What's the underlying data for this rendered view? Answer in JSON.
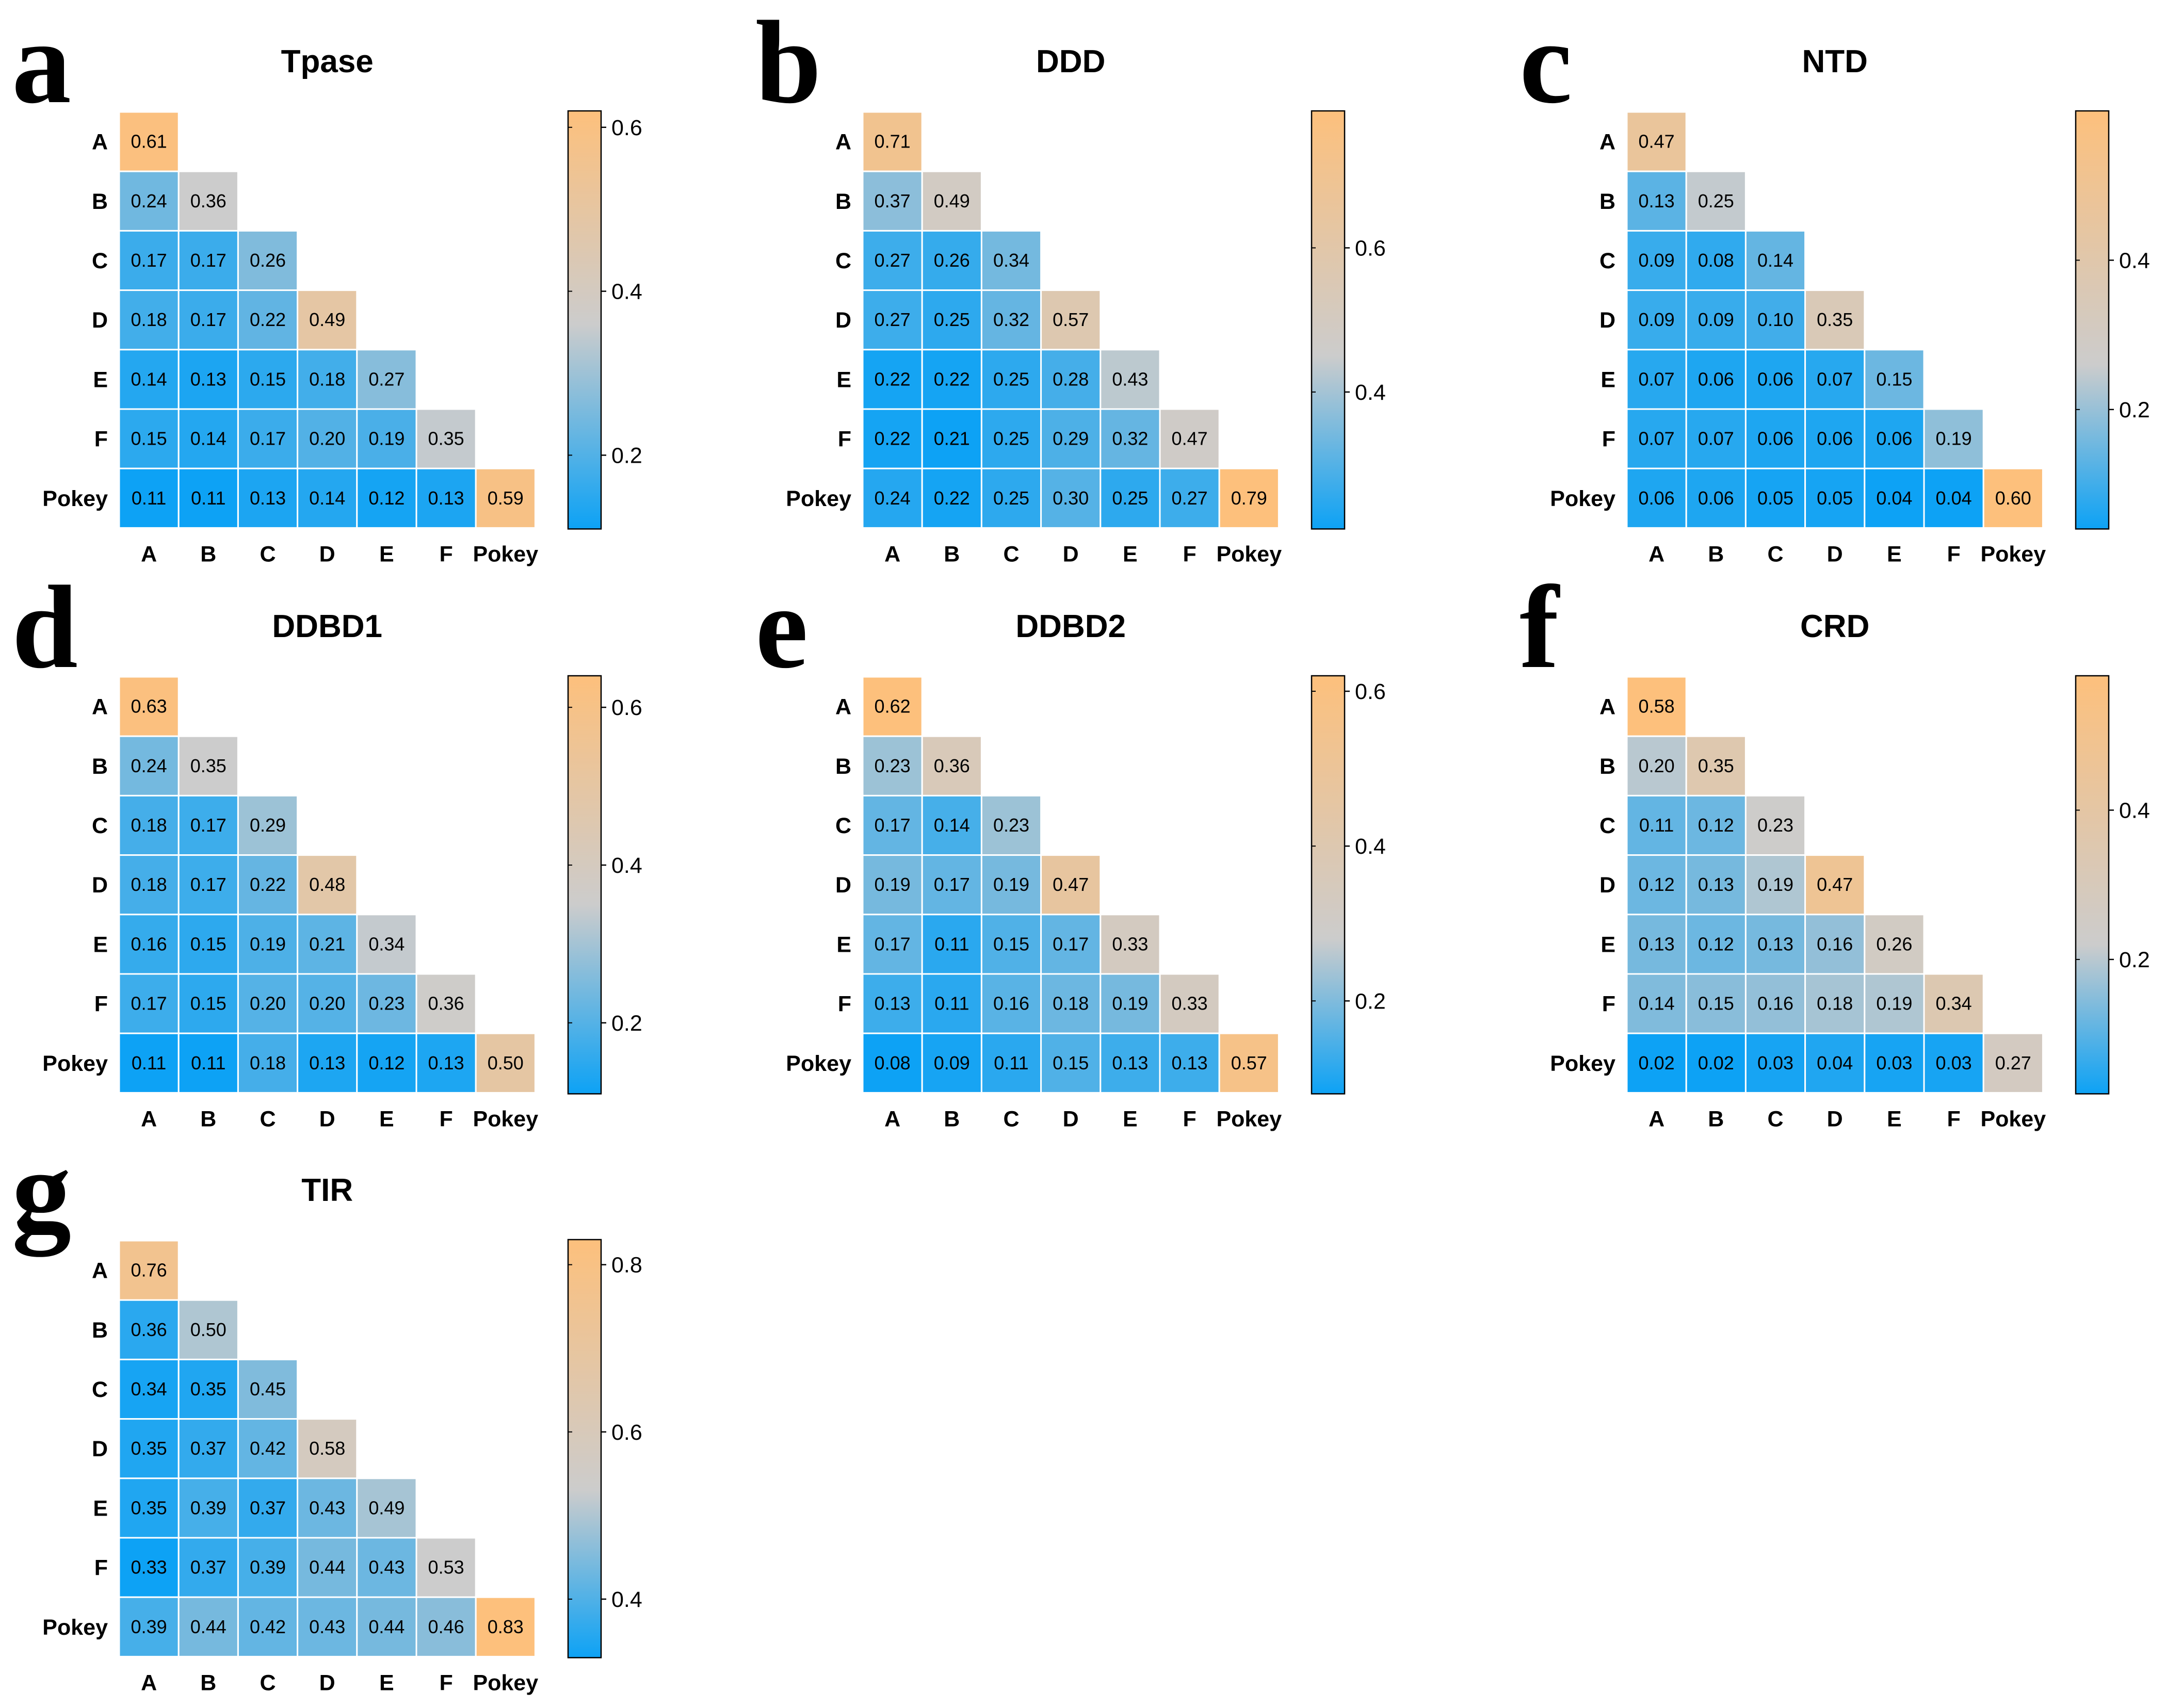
{
  "colors": {
    "low": "#0da2f5",
    "mid": "#cccccc",
    "high": "#fdc07c",
    "grid": "#ffffff",
    "frame": "#000000"
  },
  "chart_data": [
    {
      "type": "heatmap",
      "letter": "a",
      "title": "Tpase",
      "labels": [
        "A",
        "B",
        "C",
        "D",
        "E",
        "F",
        "Pokey"
      ],
      "values": [
        [
          0.61
        ],
        [
          0.24,
          0.36
        ],
        [
          0.17,
          0.17,
          0.26
        ],
        [
          0.18,
          0.17,
          0.22,
          0.49
        ],
        [
          0.14,
          0.13,
          0.15,
          0.18,
          0.27
        ],
        [
          0.15,
          0.14,
          0.17,
          0.2,
          0.19,
          0.35
        ],
        [
          0.11,
          0.11,
          0.13,
          0.14,
          0.12,
          0.13,
          0.59
        ]
      ],
      "display": [
        [
          "0.61"
        ],
        [
          "0.24",
          "0.36"
        ],
        [
          "0.17",
          "0.17",
          "0.26"
        ],
        [
          "0.18",
          "0.17",
          "0.22",
          "0.49"
        ],
        [
          "0.14",
          "0.13",
          "0.15",
          "0.18",
          "0.27"
        ],
        [
          "0.15",
          "0.14",
          "0.17",
          "0.20",
          "0.19",
          "0.35"
        ],
        [
          "0.11",
          "0.11",
          "0.13",
          "0.14",
          "0.12",
          "0.13",
          "0.59"
        ]
      ],
      "colorbar": {
        "range": [
          0.11,
          0.62
        ],
        "mid": 0.36,
        "ticks": [
          0.2,
          0.4,
          0.6
        ],
        "tick_labels": [
          "0.2",
          "0.4",
          "0.6"
        ]
      }
    },
    {
      "type": "heatmap",
      "letter": "b",
      "title": "DDD",
      "labels": [
        "A",
        "B",
        "C",
        "D",
        "E",
        "F",
        "Pokey"
      ],
      "values": [
        [
          0.71
        ],
        [
          0.37,
          0.49
        ],
        [
          0.27,
          0.26,
          0.34
        ],
        [
          0.27,
          0.25,
          0.32,
          0.57
        ],
        [
          0.22,
          0.22,
          0.25,
          0.28,
          0.43
        ],
        [
          0.22,
          0.21,
          0.25,
          0.29,
          0.32,
          0.47
        ],
        [
          0.24,
          0.22,
          0.25,
          0.3,
          0.25,
          0.27,
          0.79
        ]
      ],
      "display": [
        [
          "0.71"
        ],
        [
          "0.37",
          "0.49"
        ],
        [
          "0.27",
          "0.26",
          "0.34"
        ],
        [
          "0.27",
          "0.25",
          "0.32",
          "0.57"
        ],
        [
          "0.22",
          "0.22",
          "0.25",
          "0.28",
          "0.43"
        ],
        [
          "0.22",
          "0.21",
          "0.25",
          "0.29",
          "0.32",
          "0.47"
        ],
        [
          "0.24",
          "0.22",
          "0.25",
          "0.30",
          "0.25",
          "0.27",
          "0.79"
        ]
      ],
      "colorbar": {
        "range": [
          0.21,
          0.79
        ],
        "mid": 0.45,
        "ticks": [
          0.4,
          0.6
        ],
        "tick_labels": [
          "0.4",
          "0.6"
        ]
      }
    },
    {
      "type": "heatmap",
      "letter": "c",
      "title": "NTD",
      "labels": [
        "A",
        "B",
        "C",
        "D",
        "E",
        "F",
        "Pokey"
      ],
      "values": [
        [
          0.47
        ],
        [
          0.13,
          0.25
        ],
        [
          0.09,
          0.08,
          0.14
        ],
        [
          0.09,
          0.09,
          0.1,
          0.35
        ],
        [
          0.07,
          0.06,
          0.06,
          0.07,
          0.15
        ],
        [
          0.07,
          0.07,
          0.06,
          0.06,
          0.06,
          0.19
        ],
        [
          0.06,
          0.06,
          0.05,
          0.05,
          0.04,
          0.04,
          0.6
        ]
      ],
      "display": [
        [
          "0.47"
        ],
        [
          "0.13",
          "0.25"
        ],
        [
          "0.09",
          "0.08",
          "0.14"
        ],
        [
          "0.09",
          "0.09",
          "0.10",
          "0.35"
        ],
        [
          "0.07",
          "0.06",
          "0.06",
          "0.07",
          "0.15"
        ],
        [
          "0.07",
          "0.07",
          "0.06",
          "0.06",
          "0.06",
          "0.19"
        ],
        [
          "0.06",
          "0.06",
          "0.05",
          "0.05",
          "0.04",
          "0.04",
          "0.60"
        ]
      ],
      "colorbar": {
        "range": [
          0.04,
          0.6
        ],
        "mid": 0.26,
        "ticks": [
          0.2,
          0.4
        ],
        "tick_labels": [
          "0.2",
          "0.4"
        ]
      }
    },
    {
      "type": "heatmap",
      "letter": "d",
      "title": "DDBD1",
      "labels": [
        "A",
        "B",
        "C",
        "D",
        "E",
        "F",
        "Pokey"
      ],
      "values": [
        [
          0.63
        ],
        [
          0.24,
          0.35
        ],
        [
          0.18,
          0.17,
          0.29
        ],
        [
          0.18,
          0.17,
          0.22,
          0.48
        ],
        [
          0.16,
          0.15,
          0.19,
          0.21,
          0.34
        ],
        [
          0.17,
          0.15,
          0.2,
          0.2,
          0.23,
          0.36
        ],
        [
          0.11,
          0.11,
          0.18,
          0.13,
          0.12,
          0.13,
          0.5
        ]
      ],
      "display": [
        [
          "0.63"
        ],
        [
          "0.24",
          "0.35"
        ],
        [
          "0.18",
          "0.17",
          "0.29"
        ],
        [
          "0.18",
          "0.17",
          "0.22",
          "0.48"
        ],
        [
          "0.16",
          "0.15",
          "0.19",
          "0.21",
          "0.34"
        ],
        [
          "0.17",
          "0.15",
          "0.20",
          "0.20",
          "0.23",
          "0.36"
        ],
        [
          "0.11",
          "0.11",
          "0.18",
          "0.13",
          "0.12",
          "0.13",
          "0.50"
        ]
      ],
      "colorbar": {
        "range": [
          0.11,
          0.64
        ],
        "mid": 0.35,
        "ticks": [
          0.2,
          0.4,
          0.6
        ],
        "tick_labels": [
          "0.2",
          "0.4",
          "0.6"
        ]
      }
    },
    {
      "type": "heatmap",
      "letter": "e",
      "title": "DDBD2",
      "labels": [
        "A",
        "B",
        "C",
        "D",
        "E",
        "F",
        "Pokey"
      ],
      "values": [
        [
          0.62
        ],
        [
          0.23,
          0.36
        ],
        [
          0.17,
          0.14,
          0.23
        ],
        [
          0.19,
          0.17,
          0.19,
          0.47
        ],
        [
          0.17,
          0.11,
          0.15,
          0.17,
          0.33
        ],
        [
          0.13,
          0.11,
          0.16,
          0.18,
          0.19,
          0.33
        ],
        [
          0.08,
          0.09,
          0.11,
          0.15,
          0.13,
          0.13,
          0.57
        ]
      ],
      "display": [
        [
          "0.62"
        ],
        [
          "0.23",
          "0.36"
        ],
        [
          "0.17",
          "0.14",
          "0.23"
        ],
        [
          "0.19",
          "0.17",
          "0.19",
          "0.47"
        ],
        [
          "0.17",
          "0.11",
          "0.15",
          "0.17",
          "0.33"
        ],
        [
          "0.13",
          "0.11",
          "0.16",
          "0.18",
          "0.19",
          "0.33"
        ],
        [
          "0.08",
          "0.09",
          "0.11",
          "0.15",
          "0.13",
          "0.13",
          "0.57"
        ]
      ],
      "colorbar": {
        "range": [
          0.08,
          0.62
        ],
        "mid": 0.28,
        "ticks": [
          0.2,
          0.4,
          0.6
        ],
        "tick_labels": [
          "0.2",
          "0.4",
          "0.6"
        ]
      }
    },
    {
      "type": "heatmap",
      "letter": "f",
      "title": "CRD",
      "labels": [
        "A",
        "B",
        "C",
        "D",
        "E",
        "F",
        "Pokey"
      ],
      "values": [
        [
          0.58
        ],
        [
          0.2,
          0.35
        ],
        [
          0.11,
          0.12,
          0.23
        ],
        [
          0.12,
          0.13,
          0.19,
          0.47
        ],
        [
          0.13,
          0.12,
          0.13,
          0.16,
          0.26
        ],
        [
          0.14,
          0.15,
          0.16,
          0.18,
          0.19,
          0.34
        ],
        [
          0.02,
          0.02,
          0.03,
          0.04,
          0.03,
          0.03,
          0.27
        ]
      ],
      "display": [
        [
          "0.58"
        ],
        [
          "0.20",
          "0.35"
        ],
        [
          "0.11",
          "0.12",
          "0.23"
        ],
        [
          "0.12",
          "0.13",
          "0.19",
          "0.47"
        ],
        [
          "0.13",
          "0.12",
          "0.13",
          "0.16",
          "0.26"
        ],
        [
          "0.14",
          "0.15",
          "0.16",
          "0.18",
          "0.19",
          "0.34"
        ],
        [
          "0.02",
          "0.02",
          "0.03",
          "0.04",
          "0.03",
          "0.03",
          "0.27"
        ]
      ],
      "colorbar": {
        "range": [
          0.02,
          0.58
        ],
        "mid": 0.22,
        "ticks": [
          0.2,
          0.4
        ],
        "tick_labels": [
          "0.2",
          "0.4"
        ]
      }
    },
    {
      "type": "heatmap",
      "letter": "g",
      "title": "TIR",
      "labels": [
        "A",
        "B",
        "C",
        "D",
        "E",
        "F",
        "Pokey"
      ],
      "values": [
        [
          0.76
        ],
        [
          0.36,
          0.5
        ],
        [
          0.34,
          0.35,
          0.45
        ],
        [
          0.35,
          0.37,
          0.42,
          0.58
        ],
        [
          0.35,
          0.39,
          0.37,
          0.43,
          0.49
        ],
        [
          0.33,
          0.37,
          0.39,
          0.44,
          0.43,
          0.53
        ],
        [
          0.39,
          0.44,
          0.42,
          0.43,
          0.44,
          0.46,
          0.83
        ]
      ],
      "display": [
        [
          "0.76"
        ],
        [
          "0.36",
          "0.50"
        ],
        [
          "0.34",
          "0.35",
          "0.45"
        ],
        [
          "0.35",
          "0.37",
          "0.42",
          "0.58"
        ],
        [
          "0.35",
          "0.39",
          "0.37",
          "0.43",
          "0.49"
        ],
        [
          "0.33",
          "0.37",
          "0.39",
          "0.44",
          "0.43",
          "0.53"
        ],
        [
          "0.39",
          "0.44",
          "0.42",
          "0.43",
          "0.44",
          "0.46",
          "0.83"
        ]
      ],
      "colorbar": {
        "range": [
          0.33,
          0.83
        ],
        "mid": 0.53,
        "ticks": [
          0.4,
          0.6,
          0.8
        ],
        "tick_labels": [
          "0.4",
          "0.6",
          "0.8"
        ]
      }
    }
  ]
}
